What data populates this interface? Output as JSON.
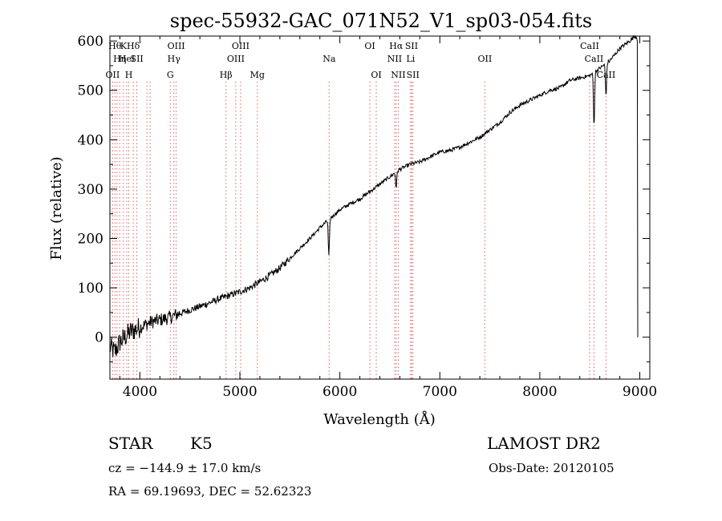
{
  "chart_data": {
    "type": "line",
    "title": "spec-55932-GAC_071N52_V1_sp03-054.fits",
    "xlabel": "Wavelength (Å)",
    "ylabel": "Flux (relative)",
    "xlim": [
      3700,
      9100
    ],
    "ylim": [
      -85,
      610
    ],
    "xticks": [
      4000,
      5000,
      6000,
      7000,
      8000,
      9000
    ],
    "yticks": [
      0,
      100,
      200,
      300,
      400,
      500,
      600
    ],
    "grid": false,
    "series": [
      {
        "x": [
          3700,
          3750,
          3800,
          3850,
          3900,
          3950,
          4000,
          4050,
          4100,
          4200,
          4300,
          4400,
          4500,
          4600,
          4700,
          4800,
          4900,
          5000,
          5100,
          5200,
          5300,
          5400,
          5500,
          5600,
          5700,
          5800,
          5900,
          6000,
          6100,
          6200,
          6300,
          6400,
          6500,
          6600,
          6700,
          6800,
          6900,
          7000,
          7100,
          7200,
          7300,
          7400,
          7500,
          7600,
          7700,
          7800,
          7900,
          8000,
          8100,
          8200,
          8300,
          8400,
          8500,
          8600,
          8700,
          8800,
          8900,
          8950,
          9000
        ],
        "values": [
          -20,
          -30,
          -10,
          0,
          10,
          15,
          20,
          25,
          30,
          35,
          40,
          48,
          55,
          62,
          70,
          78,
          85,
          92,
          100,
          112,
          125,
          140,
          160,
          180,
          200,
          222,
          240,
          258,
          270,
          280,
          295,
          310,
          325,
          340,
          350,
          355,
          365,
          375,
          378,
          385,
          395,
          405,
          420,
          435,
          455,
          470,
          480,
          490,
          500,
          505,
          520,
          525,
          530,
          545,
          560,
          585,
          600,
          610,
          605
        ]
      }
    ],
    "absorption_dips": [
      {
        "x": 5890,
        "depth": 75
      },
      {
        "x": 6563,
        "depth": 30
      },
      {
        "x": 8542,
        "depth": 110
      },
      {
        "x": 8662,
        "depth": 65
      }
    ],
    "line_markers": [
      {
        "x": 3727,
        "row": 3,
        "label": "OII"
      },
      {
        "x": 3750,
        "row": 1,
        "label": "Hθ"
      },
      {
        "x": 3771,
        "row": 1,
        "label": ""
      },
      {
        "x": 3798,
        "row": 2,
        "label": "Hη"
      },
      {
        "x": 3835,
        "row": 1,
        "label": "K"
      },
      {
        "x": 3869,
        "row": 2,
        "label": "HeI"
      },
      {
        "x": 3889,
        "row": 3,
        "label": "H"
      },
      {
        "x": 3934,
        "row": 1,
        "label": "Hδ"
      },
      {
        "x": 3970,
        "row": 2,
        "label": "SII"
      },
      {
        "x": 4070,
        "row": 1,
        "label": ""
      },
      {
        "x": 4102,
        "row": 1,
        "label": ""
      },
      {
        "x": 4304,
        "row": 3,
        "label": "G"
      },
      {
        "x": 4340,
        "row": 2,
        "label": "Hγ"
      },
      {
        "x": 4363,
        "row": 1,
        "label": "OIII"
      },
      {
        "x": 4861,
        "row": 3,
        "label": "Hβ"
      },
      {
        "x": 4959,
        "row": 2,
        "label": "OIII"
      },
      {
        "x": 5007,
        "row": 1,
        "label": "OIII"
      },
      {
        "x": 5175,
        "row": 3,
        "label": "Mg"
      },
      {
        "x": 5893,
        "row": 2,
        "label": "Na"
      },
      {
        "x": 6300,
        "row": 1,
        "label": "OI"
      },
      {
        "x": 6364,
        "row": 3,
        "label": "OI"
      },
      {
        "x": 6548,
        "row": 2,
        "label": "NII"
      },
      {
        "x": 6563,
        "row": 1,
        "label": "Hα"
      },
      {
        "x": 6584,
        "row": 3,
        "label": "NII"
      },
      {
        "x": 6708,
        "row": 2,
        "label": "Li"
      },
      {
        "x": 6717,
        "row": 1,
        "label": "SII"
      },
      {
        "x": 6731,
        "row": 3,
        "label": "SII"
      },
      {
        "x": 7450,
        "row": 2,
        "label": "OII"
      },
      {
        "x": 8498,
        "row": 1,
        "label": "CaII"
      },
      {
        "x": 8542,
        "row": 2,
        "label": "CaII"
      },
      {
        "x": 8662,
        "row": 3,
        "label": "CaII"
      }
    ]
  },
  "info": {
    "object_class": "STAR",
    "subclass": "K5",
    "survey": "LAMOST DR2",
    "cz": "cz = −144.9 ± 17.0 km/s",
    "obs_date": "Obs-Date: 20120105",
    "coords": "RA =  69.19693, DEC =  52.62323"
  }
}
